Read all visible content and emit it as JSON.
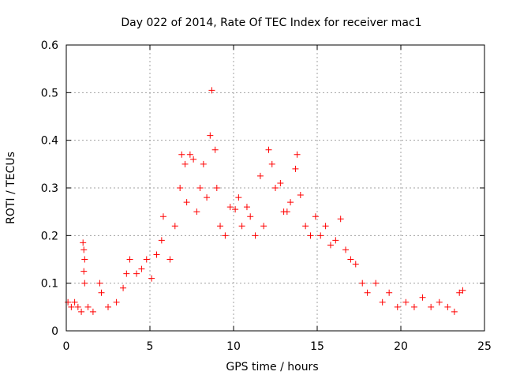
{
  "chart_data": {
    "type": "scatter",
    "title": "Day 022 of 2014, Rate Of TEC Index for receiver mac1",
    "xlabel": "GPS time / hours",
    "ylabel": "ROTI / TECUs",
    "xlim": [
      0,
      25
    ],
    "ylim": [
      0,
      0.6
    ],
    "xticks": [
      "0",
      "5",
      "10",
      "15",
      "20",
      "25"
    ],
    "yticks": [
      "0",
      "0.1",
      "0.2",
      "0.3",
      "0.4",
      "0.5",
      "0.6"
    ],
    "grid": true,
    "marker": "+",
    "color": "#ff0000",
    "series": [
      {
        "points": [
          [
            0.1,
            0.06
          ],
          [
            0.3,
            0.05
          ],
          [
            0.5,
            0.06
          ],
          [
            0.7,
            0.05
          ],
          [
            0.9,
            0.04
          ],
          [
            1.0,
            0.185
          ],
          [
            1.05,
            0.17
          ],
          [
            1.1,
            0.15
          ],
          [
            1.05,
            0.125
          ],
          [
            1.1,
            0.1
          ],
          [
            1.3,
            0.05
          ],
          [
            1.6,
            0.04
          ],
          [
            2.0,
            0.1
          ],
          [
            2.1,
            0.08
          ],
          [
            2.5,
            0.05
          ],
          [
            3.0,
            0.06
          ],
          [
            3.4,
            0.09
          ],
          [
            3.6,
            0.12
          ],
          [
            3.8,
            0.15
          ],
          [
            4.2,
            0.12
          ],
          [
            4.5,
            0.13
          ],
          [
            4.8,
            0.15
          ],
          [
            5.1,
            0.11
          ],
          [
            5.4,
            0.16
          ],
          [
            5.7,
            0.19
          ],
          [
            5.8,
            0.24
          ],
          [
            6.2,
            0.15
          ],
          [
            6.5,
            0.22
          ],
          [
            6.8,
            0.3
          ],
          [
            6.9,
            0.37
          ],
          [
            7.1,
            0.35
          ],
          [
            7.2,
            0.27
          ],
          [
            7.4,
            0.37
          ],
          [
            7.6,
            0.36
          ],
          [
            7.8,
            0.25
          ],
          [
            8.0,
            0.3
          ],
          [
            8.2,
            0.35
          ],
          [
            8.4,
            0.28
          ],
          [
            8.6,
            0.41
          ],
          [
            8.7,
            0.505
          ],
          [
            8.9,
            0.38
          ],
          [
            9.0,
            0.3
          ],
          [
            9.2,
            0.22
          ],
          [
            9.5,
            0.2
          ],
          [
            9.8,
            0.26
          ],
          [
            10.1,
            0.255
          ],
          [
            10.3,
            0.28
          ],
          [
            10.5,
            0.22
          ],
          [
            10.8,
            0.26
          ],
          [
            11.0,
            0.24
          ],
          [
            11.3,
            0.2
          ],
          [
            11.6,
            0.325
          ],
          [
            11.8,
            0.22
          ],
          [
            12.1,
            0.38
          ],
          [
            12.3,
            0.35
          ],
          [
            12.5,
            0.3
          ],
          [
            12.8,
            0.31
          ],
          [
            13.0,
            0.25
          ],
          [
            13.2,
            0.25
          ],
          [
            13.4,
            0.27
          ],
          [
            13.7,
            0.34
          ],
          [
            13.8,
            0.37
          ],
          [
            14.0,
            0.285
          ],
          [
            14.3,
            0.22
          ],
          [
            14.6,
            0.2
          ],
          [
            14.9,
            0.24
          ],
          [
            15.2,
            0.2
          ],
          [
            15.5,
            0.22
          ],
          [
            15.8,
            0.18
          ],
          [
            16.1,
            0.19
          ],
          [
            16.4,
            0.235
          ],
          [
            16.7,
            0.17
          ],
          [
            17.0,
            0.15
          ],
          [
            17.3,
            0.14
          ],
          [
            17.7,
            0.1
          ],
          [
            18.0,
            0.08
          ],
          [
            18.5,
            0.1
          ],
          [
            18.9,
            0.06
          ],
          [
            19.3,
            0.08
          ],
          [
            19.8,
            0.05
          ],
          [
            20.3,
            0.06
          ],
          [
            20.8,
            0.05
          ],
          [
            21.3,
            0.07
          ],
          [
            21.8,
            0.05
          ],
          [
            22.3,
            0.06
          ],
          [
            22.8,
            0.05
          ],
          [
            23.2,
            0.04
          ],
          [
            23.5,
            0.08
          ],
          [
            23.7,
            0.085
          ]
        ]
      }
    ]
  }
}
